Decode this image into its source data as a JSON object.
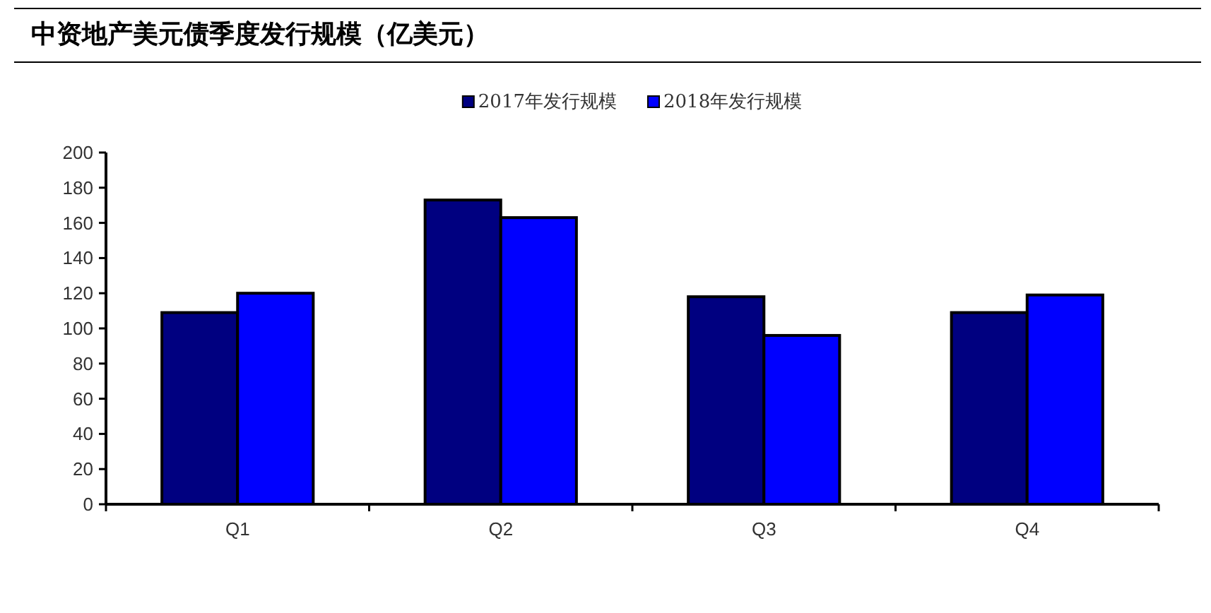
{
  "chart_data": {
    "type": "bar",
    "title": "中资地产美元债季度发行规模（亿美元）",
    "categories": [
      "Q1",
      "Q2",
      "Q3",
      "Q4"
    ],
    "series": [
      {
        "name": "2017年发行规模",
        "color": "#000080",
        "values": [
          109,
          173,
          118,
          109
        ]
      },
      {
        "name": "2018年发行规模",
        "color": "#0000ff",
        "values": [
          120,
          163,
          96,
          119
        ]
      }
    ],
    "ylim": [
      0,
      200
    ],
    "yticks": [
      0,
      20,
      40,
      60,
      80,
      100,
      120,
      140,
      160,
      180,
      200
    ],
    "legend": "top"
  }
}
